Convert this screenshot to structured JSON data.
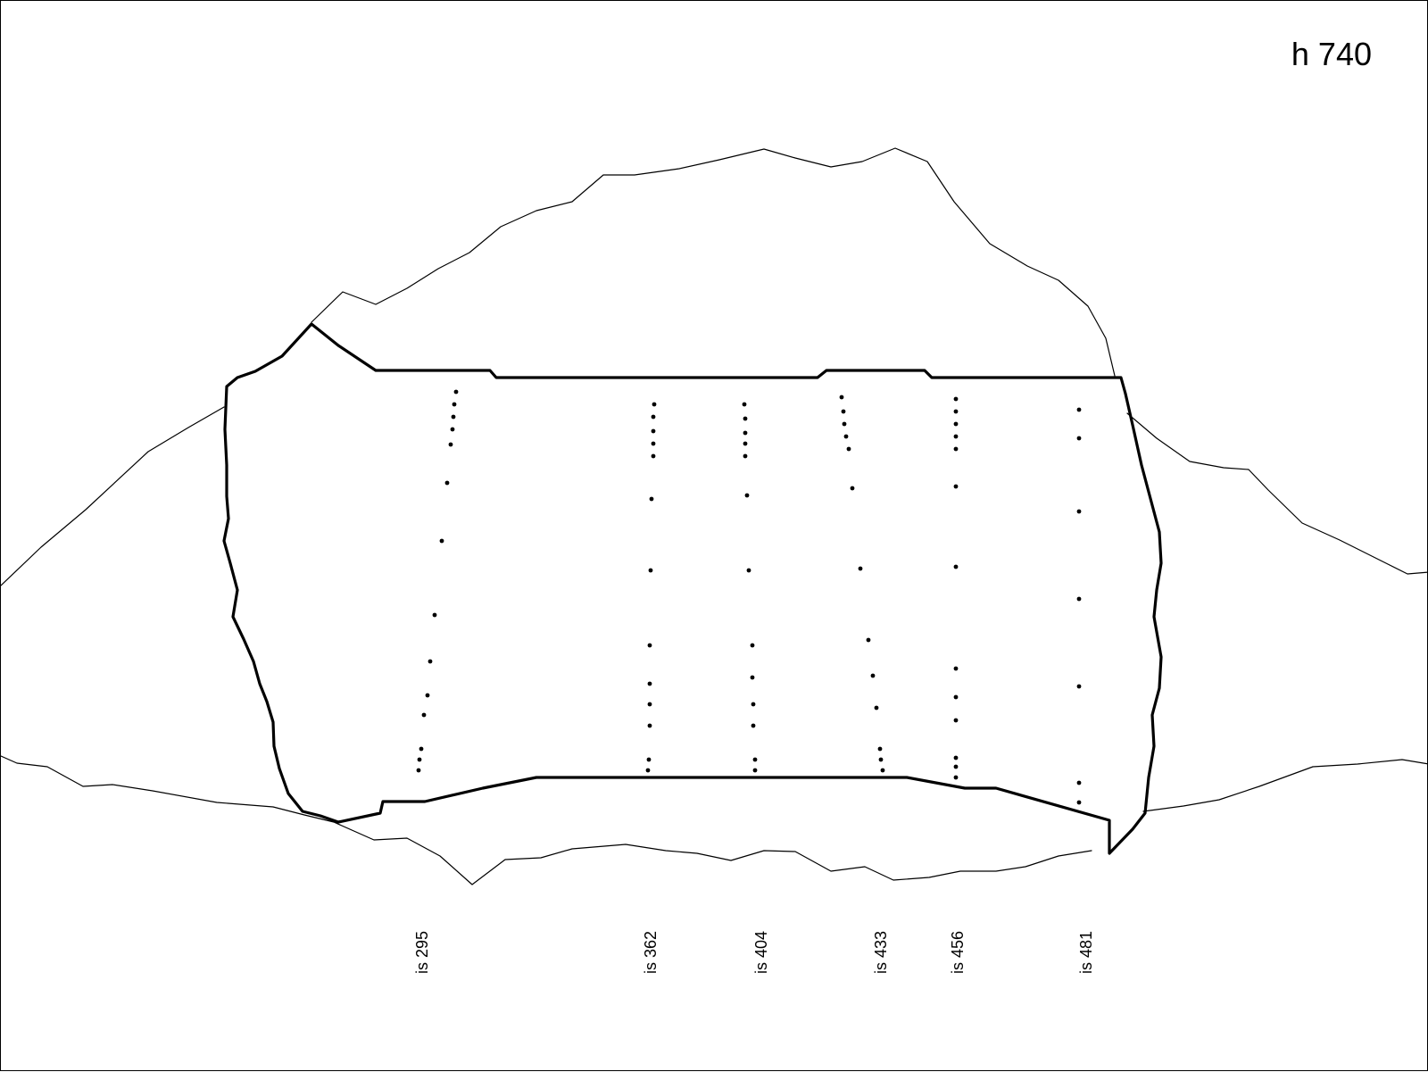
{
  "sheet": {
    "id_label": "h 740"
  },
  "sections": [
    {
      "label": "is 295"
    },
    {
      "label": "is 362"
    },
    {
      "label": "is 404"
    },
    {
      "label": "is 433"
    },
    {
      "label": "is 456"
    },
    {
      "label": "is 481"
    }
  ],
  "colors": {
    "ink": "#000000",
    "paper": "#ffffff"
  }
}
